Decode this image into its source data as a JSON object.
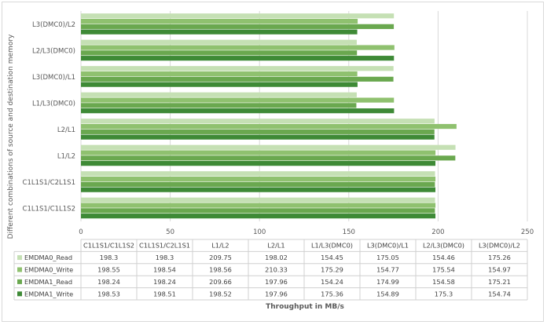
{
  "chart_data": {
    "type": "bar",
    "orientation": "horizontal",
    "title": "",
    "xlabel": "Throughput in MB/s",
    "ylabel": "Different combinations of source and destination memory",
    "xlim": [
      0,
      250
    ],
    "xticks": [
      0,
      50,
      100,
      150,
      200,
      250
    ],
    "grid": true,
    "legend_placement": "data-table-below",
    "categories": [
      "C1L1S1/C1L1S2",
      "C1L1S1/C2L1S1",
      "L1/L2",
      "L2/L1",
      "L1/L3(DMC0)",
      "L3(DMC0)/L1",
      "L2/L3(DMC0)",
      "L3(DMC0)/L2"
    ],
    "series": [
      {
        "name": "EMDMA0_Read",
        "color": "#c5e0b4",
        "values": [
          198.3,
          198.3,
          209.75,
          198.02,
          154.45,
          175.05,
          154.46,
          175.26
        ]
      },
      {
        "name": "EMDMA0_Write",
        "color": "#8fc16f",
        "values": [
          198.55,
          198.54,
          198.56,
          210.33,
          175.29,
          154.77,
          175.54,
          154.97
        ]
      },
      {
        "name": "EMDMA1_Read",
        "color": "#6aa84f",
        "values": [
          198.24,
          198.24,
          209.66,
          197.96,
          154.24,
          174.99,
          154.58,
          175.21
        ]
      },
      {
        "name": "EMDMA1_Write",
        "color": "#3e8a36",
        "values": [
          198.53,
          198.51,
          198.52,
          197.96,
          175.36,
          154.89,
          175.3,
          154.74
        ]
      }
    ]
  }
}
